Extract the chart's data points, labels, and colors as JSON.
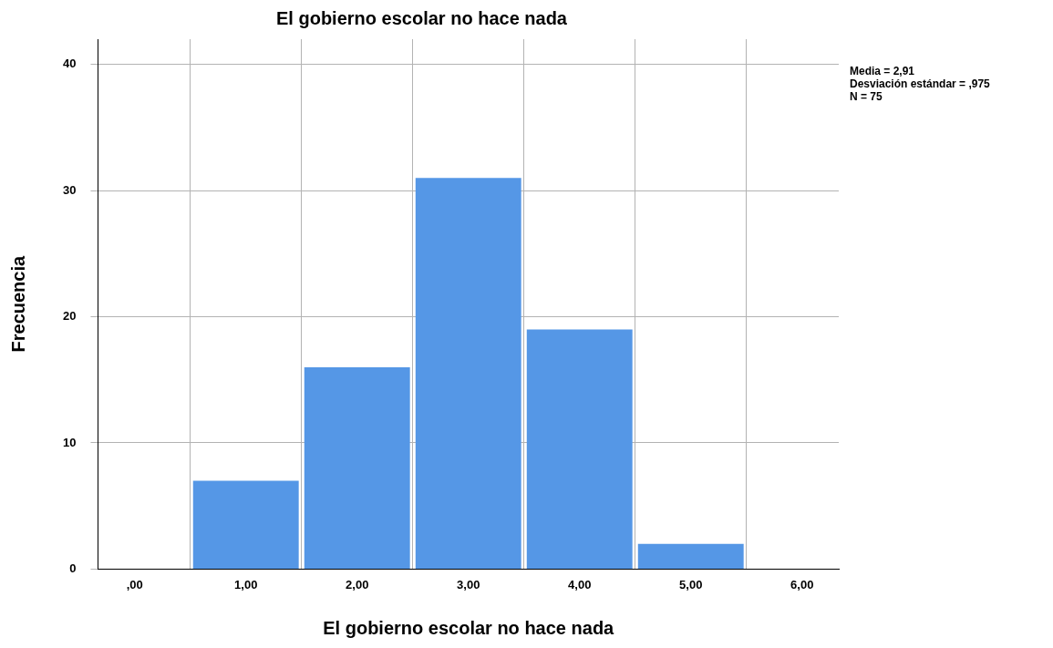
{
  "chart_data": {
    "type": "histogram",
    "title": "El gobierno escolar no hace nada",
    "xlabel": "El gobierno escolar no hace nada",
    "ylabel": "Frecuencia",
    "bins": [
      0.5,
      1.5,
      2.5,
      3.5,
      4.5,
      5.5
    ],
    "values": [
      7,
      16,
      31,
      19,
      2
    ],
    "color": "#5597e6",
    "xlim": [
      -0.33,
      6.33
    ],
    "xticks": [
      {
        "value": 0,
        "label": ",00"
      },
      {
        "value": 1,
        "label": "1,00"
      },
      {
        "value": 2,
        "label": "2,00"
      },
      {
        "value": 3,
        "label": "3,00"
      },
      {
        "value": 4,
        "label": "4,00"
      },
      {
        "value": 5,
        "label": "5,00"
      },
      {
        "value": 6,
        "label": "6,00"
      }
    ],
    "ylim": [
      0,
      42
    ],
    "yticks": [
      0,
      10,
      20,
      30,
      40
    ],
    "grid": true,
    "legend": false,
    "annotations": [
      "Media = 2,91",
      "Desviación estándar = ,975",
      "N = 75"
    ]
  }
}
